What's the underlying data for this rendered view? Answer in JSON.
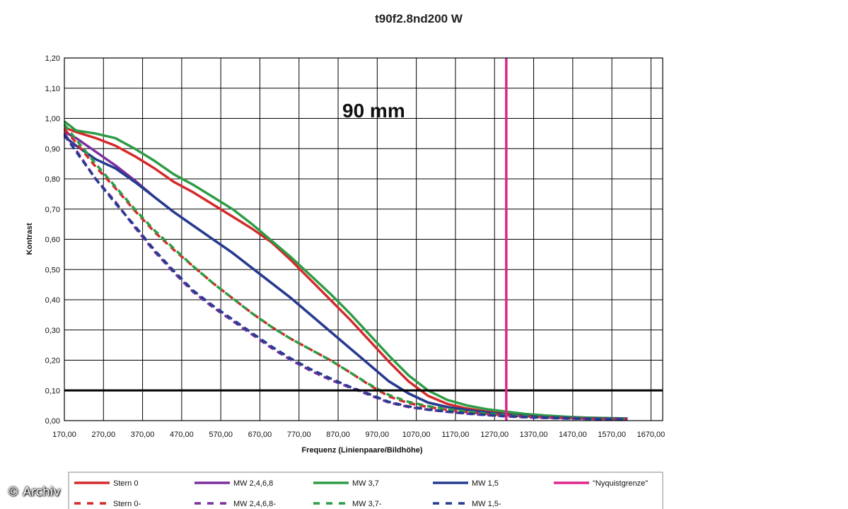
{
  "watermark": "© Archiv",
  "chart_data": {
    "type": "line",
    "title": "t90f2.8nd200 W",
    "annotation": "90 mm",
    "xlabel": "Frequenz (Linienpaare/Bildhöhe)",
    "ylabel": "Kontrast",
    "xlim": [
      170,
      1700
    ],
    "ylim": [
      0,
      1.2
    ],
    "x_ticks": [
      170,
      270,
      370,
      470,
      570,
      670,
      770,
      870,
      970,
      1070,
      1170,
      1270,
      1370,
      1470,
      1570,
      1670
    ],
    "x_tick_labels": [
      "170,00",
      "270,00",
      "370,00",
      "470,00",
      "570,00",
      "670,00",
      "770,00",
      "870,00",
      "970,00",
      "1070,00",
      "1170,00",
      "1270,00",
      "1370,00",
      "1470,00",
      "1570,00",
      "1670,00"
    ],
    "y_ticks": [
      0,
      0.1,
      0.2,
      0.3,
      0.4,
      0.5,
      0.6,
      0.7,
      0.8,
      0.9,
      1.0,
      1.1,
      1.2
    ],
    "y_tick_labels": [
      "0,00",
      "0,10",
      "0,20",
      "0,30",
      "0,40",
      "0,50",
      "0,60",
      "0,70",
      "0,80",
      "0,90",
      "1,00",
      "1,10",
      "1,20"
    ],
    "grid": true,
    "legend_position": "bottom",
    "reference_lines": [
      {
        "orientation": "horizontal",
        "value": 0.1,
        "color": "#000000"
      },
      {
        "orientation": "vertical",
        "value": 1300,
        "color": "#e0248c",
        "name": "\"Nyquistgrenze\""
      }
    ],
    "series": [
      {
        "name": "Stern 0",
        "color": "#d42a2a",
        "dash": false,
        "x": [
          170,
          200,
          250,
          300,
          350,
          400,
          450,
          500,
          550,
          600,
          650,
          700,
          750,
          800,
          850,
          900,
          950,
          1000,
          1050,
          1100,
          1150,
          1200,
          1250,
          1300,
          1350,
          1400,
          1450,
          1500,
          1550,
          1610
        ],
        "y": [
          0.97,
          0.955,
          0.935,
          0.91,
          0.875,
          0.835,
          0.79,
          0.755,
          0.715,
          0.675,
          0.635,
          0.59,
          0.53,
          0.465,
          0.4,
          0.335,
          0.265,
          0.195,
          0.13,
          0.082,
          0.055,
          0.04,
          0.03,
          0.025,
          0.02,
          0.015,
          0.012,
          0.01,
          0.008,
          0.007
        ]
      },
      {
        "name": "MW 2,4,6,8",
        "color": "#7b2f9e",
        "dash": false,
        "x": [
          170,
          200,
          250,
          300,
          350,
          400,
          450,
          500,
          550,
          600,
          650,
          700,
          750,
          800,
          850,
          900,
          950,
          1000,
          1050,
          1100,
          1150,
          1200,
          1250,
          1300,
          1350,
          1400,
          1450,
          1500,
          1550,
          1610
        ],
        "y": [
          0.955,
          0.935,
          0.89,
          0.845,
          0.795,
          0.74,
          0.69,
          0.645,
          0.6,
          0.555,
          0.505,
          0.455,
          0.405,
          0.35,
          0.295,
          0.24,
          0.185,
          0.13,
          0.09,
          0.06,
          0.045,
          0.035,
          0.027,
          0.02,
          0.016,
          0.012,
          0.01,
          0.008,
          0.007,
          0.006
        ]
      },
      {
        "name": "MW 3,7",
        "color": "#2e9c46",
        "dash": false,
        "x": [
          170,
          200,
          250,
          300,
          350,
          400,
          450,
          500,
          550,
          600,
          650,
          700,
          750,
          800,
          850,
          900,
          950,
          1000,
          1050,
          1100,
          1150,
          1200,
          1250,
          1300,
          1350,
          1400,
          1450,
          1500,
          1550,
          1610
        ],
        "y": [
          0.99,
          0.96,
          0.95,
          0.935,
          0.9,
          0.86,
          0.815,
          0.78,
          0.74,
          0.7,
          0.65,
          0.595,
          0.54,
          0.48,
          0.42,
          0.355,
          0.285,
          0.215,
          0.15,
          0.1,
          0.068,
          0.05,
          0.038,
          0.03,
          0.022,
          0.017,
          0.013,
          0.01,
          0.009,
          0.007
        ]
      },
      {
        "name": "MW 1,5",
        "color": "#243c8f",
        "dash": false,
        "x": [
          170,
          200,
          250,
          300,
          350,
          400,
          450,
          500,
          550,
          600,
          650,
          700,
          750,
          800,
          850,
          900,
          950,
          1000,
          1050,
          1100,
          1150,
          1200,
          1250,
          1300,
          1350,
          1400,
          1450,
          1500,
          1550,
          1610
        ],
        "y": [
          0.94,
          0.91,
          0.865,
          0.835,
          0.79,
          0.74,
          0.69,
          0.645,
          0.6,
          0.555,
          0.505,
          0.455,
          0.405,
          0.35,
          0.295,
          0.24,
          0.185,
          0.13,
          0.09,
          0.06,
          0.045,
          0.035,
          0.027,
          0.02,
          0.016,
          0.012,
          0.01,
          0.008,
          0.007,
          0.006
        ]
      },
      {
        "name": "Stern 0-",
        "color": "#d42a2a",
        "dash": true,
        "x": [
          170,
          200,
          250,
          300,
          350,
          400,
          450,
          500,
          550,
          600,
          650,
          700,
          750,
          800,
          850,
          900,
          950,
          1000,
          1050,
          1100,
          1150,
          1200,
          1250,
          1300,
          1350,
          1400,
          1450,
          1500,
          1550,
          1610
        ],
        "y": [
          0.965,
          0.92,
          0.84,
          0.77,
          0.695,
          0.625,
          0.565,
          0.51,
          0.455,
          0.405,
          0.355,
          0.31,
          0.27,
          0.235,
          0.2,
          0.16,
          0.118,
          0.08,
          0.058,
          0.045,
          0.036,
          0.028,
          0.022,
          0.018,
          0.014,
          0.011,
          0.009,
          0.007,
          0.006,
          0.005
        ]
      },
      {
        "name": "MW 2,4,6,8-",
        "color": "#7b2f9e",
        "dash": true,
        "x": [
          170,
          200,
          250,
          300,
          350,
          400,
          450,
          500,
          550,
          600,
          650,
          700,
          750,
          800,
          850,
          900,
          950,
          1000,
          1050,
          1100,
          1150,
          1200,
          1250,
          1300,
          1350,
          1400,
          1450,
          1500,
          1550,
          1610
        ],
        "y": [
          0.95,
          0.895,
          0.8,
          0.725,
          0.64,
          0.56,
          0.49,
          0.425,
          0.375,
          0.33,
          0.285,
          0.24,
          0.2,
          0.165,
          0.135,
          0.11,
          0.085,
          0.06,
          0.045,
          0.036,
          0.029,
          0.023,
          0.018,
          0.014,
          0.011,
          0.009,
          0.007,
          0.006,
          0.005,
          0.004
        ]
      },
      {
        "name": "MW 3,7-",
        "color": "#2e9c46",
        "dash": true,
        "x": [
          170,
          200,
          250,
          300,
          350,
          400,
          450,
          500,
          550,
          600,
          650,
          700,
          750,
          800,
          850,
          900,
          950,
          1000,
          1050,
          1100,
          1150,
          1200,
          1250,
          1300,
          1350,
          1400,
          1450,
          1500,
          1550,
          1610
        ],
        "y": [
          0.98,
          0.93,
          0.85,
          0.775,
          0.7,
          0.63,
          0.57,
          0.51,
          0.455,
          0.405,
          0.355,
          0.31,
          0.27,
          0.235,
          0.2,
          0.16,
          0.12,
          0.085,
          0.062,
          0.048,
          0.038,
          0.03,
          0.023,
          0.018,
          0.014,
          0.011,
          0.009,
          0.007,
          0.006,
          0.005
        ]
      },
      {
        "name": "MW 1,5-",
        "color": "#243c8f",
        "dash": true,
        "x": [
          170,
          200,
          250,
          300,
          350,
          400,
          450,
          500,
          550,
          600,
          650,
          700,
          750,
          800,
          850,
          900,
          950,
          1000,
          1050,
          1100,
          1150,
          1200,
          1250,
          1300,
          1350,
          1400,
          1450,
          1500,
          1550,
          1610
        ],
        "y": [
          0.945,
          0.89,
          0.8,
          0.72,
          0.645,
          0.565,
          0.495,
          0.43,
          0.38,
          0.335,
          0.29,
          0.245,
          0.205,
          0.17,
          0.14,
          0.112,
          0.088,
          0.062,
          0.047,
          0.037,
          0.03,
          0.024,
          0.019,
          0.015,
          0.012,
          0.01,
          0.008,
          0.006,
          0.005,
          0.004
        ]
      }
    ]
  }
}
